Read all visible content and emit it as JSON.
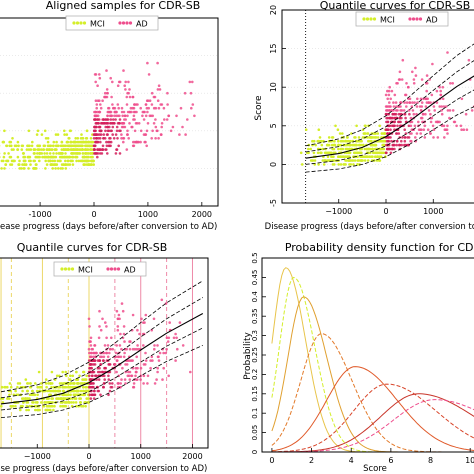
{
  "colors": {
    "mci": "#d4ee2a",
    "ad": "#ee4d8c",
    "ad_dark": "#d41d5a",
    "axis": "#000000",
    "grid": "#e6e6e6",
    "quantile_line": "#000000",
    "vline_mci": "#ecd86a",
    "vline_ad": "#ee8aa8"
  },
  "chart_data": [
    {
      "type": "scatter",
      "title": "Aligned samples for CDR-SB",
      "xlabel": "Disease progress (days before/after conversion to AD)",
      "ylabel": "",
      "xlim": [
        -2300,
        2300
      ],
      "ylim": [
        -5,
        20
      ],
      "xticks": [
        -2000,
        -1000,
        0,
        1000,
        2000
      ],
      "xtick_labels": [
        "-2000",
        "-1000",
        "0",
        "1000",
        "2000"
      ],
      "legend": [
        "MCI",
        "AD"
      ],
      "legend_position": "top-center",
      "grid": true,
      "series": [
        {
          "name": "MCI",
          "color": "mci",
          "x_range": [
            -1800,
            0
          ],
          "y_range": [
            0,
            4
          ]
        },
        {
          "name": "AD",
          "color": "ad",
          "x_range": [
            0,
            2000
          ],
          "y_range": [
            1,
            15
          ]
        }
      ]
    },
    {
      "type": "line",
      "title": "Quantile curves for CDR-SB",
      "xlabel": "Disease progress (days before/after conversion to AD)",
      "ylabel": "Score",
      "xlim": [
        -2200,
        2200
      ],
      "ylim": [
        -5,
        20
      ],
      "xticks": [
        -1000,
        0,
        1000
      ],
      "xtick_labels": [
        "−1000",
        "0",
        "1000"
      ],
      "yticks": [
        -5,
        0,
        5,
        10,
        15,
        20
      ],
      "ytick_labels": [
        "-5",
        "0",
        "5",
        "10",
        "15",
        "20"
      ],
      "legend": [
        "MCI",
        "AD"
      ],
      "legend_position": "top-center",
      "vline_dotted_x": -1700,
      "quantiles": [
        {
          "x": [
            -1700,
            -1000,
            -500,
            0,
            500,
            1000,
            1500,
            2200
          ],
          "y": [
            -1.0,
            -0.6,
            0.0,
            1.0,
            2.6,
            4.5,
            6.4,
            8.5
          ]
        },
        {
          "x": [
            -1700,
            -1000,
            -500,
            0,
            500,
            1000,
            1500,
            2200
          ],
          "y": [
            0.0,
            0.5,
            1.2,
            2.4,
            4.2,
            6.3,
            8.4,
            10.8
          ]
        },
        {
          "x": [
            -1700,
            -1000,
            -500,
            0,
            500,
            1000,
            1500,
            2200
          ],
          "y": [
            0.8,
            1.4,
            2.2,
            3.6,
            5.6,
            7.9,
            10.1,
            12.7
          ]
        },
        {
          "x": [
            -1700,
            -1000,
            -500,
            0,
            500,
            1000,
            1500,
            2200
          ],
          "y": [
            1.6,
            2.3,
            3.3,
            4.9,
            7.1,
            9.6,
            12.0,
            14.8
          ]
        },
        {
          "x": [
            -1700,
            -1000,
            -500,
            0,
            500,
            1000,
            1500,
            2200
          ],
          "y": [
            2.4,
            3.3,
            4.5,
            6.3,
            8.8,
            11.5,
            14.1,
            17.0
          ]
        }
      ]
    },
    {
      "type": "line",
      "title": "Quantile curves for CDR-SB",
      "xlabel": "Disease progress (days before/after conversion to AD)",
      "ylabel": "",
      "xlim": [
        -2300,
        2300
      ],
      "ylim": [
        -5,
        20
      ],
      "xticks": [
        -1000,
        0,
        1000,
        2000
      ],
      "xtick_labels": [
        "−1000",
        "0",
        "1000",
        "2000"
      ],
      "legend": [
        "MCI",
        "AD"
      ],
      "legend_position": "top-center",
      "vlines": [
        -1700,
        -1500,
        -900,
        -400,
        0,
        500,
        1000,
        1500,
        2000
      ],
      "quantiles_same_as_panel": 2
    },
    {
      "type": "line",
      "title": "Probability density function for CDR-SB",
      "xlabel": "Score",
      "ylabel": "Probability",
      "xlim": [
        -0.5,
        11
      ],
      "ylim": [
        0,
        0.5
      ],
      "xticks": [
        0,
        2,
        4,
        6,
        8,
        10
      ],
      "xtick_labels": [
        "0",
        "2",
        "4",
        "6",
        "8",
        "10"
      ],
      "yticks": [
        0,
        0.05,
        0.1,
        0.15,
        0.2,
        0.25,
        0.3,
        0.35,
        0.4,
        0.45,
        0.5
      ],
      "ytick_labels": [
        "0",
        "0.05",
        "0.1",
        "0.15",
        "0.2",
        "0.25",
        "0.3",
        "0.35",
        "0.4",
        "0.45",
        "0.5"
      ],
      "curves": [
        {
          "mode": 0.7,
          "peak": 0.475,
          "sd": 0.85,
          "color": "#e8c44a"
        },
        {
          "mode": 1.1,
          "peak": 0.45,
          "sd": 0.9,
          "color": "#d4ee2a"
        },
        {
          "mode": 1.6,
          "peak": 0.4,
          "sd": 1.0,
          "color": "#e0a030"
        },
        {
          "mode": 2.5,
          "peak": 0.305,
          "sd": 1.3,
          "color": "#e37a2a"
        },
        {
          "mode": 4.2,
          "peak": 0.22,
          "sd": 1.8,
          "color": "#e05a2a"
        },
        {
          "mode": 5.8,
          "peak": 0.175,
          "sd": 2.1,
          "color": "#d8452a"
        },
        {
          "mode": 7.4,
          "peak": 0.15,
          "sd": 2.4,
          "color": "#c8352a"
        },
        {
          "mode": 8.2,
          "peak": 0.135,
          "sd": 2.6,
          "color": "#ee4d8c"
        }
      ]
    }
  ],
  "panels": {
    "a": {
      "title": "Aligned samples for CDR-SB",
      "xlabel": "Disease progress (days before/after conversion to AD)",
      "legend": [
        "MCI",
        "AD"
      ]
    },
    "b": {
      "title": "Quantile curves for CDR-SB",
      "xlabel": "Disease progress (days before/after conversion to AD)",
      "ylabel": "Score",
      "legend": [
        "MCI",
        "AD"
      ]
    },
    "c": {
      "title": "Quantile curves for CDR-SB",
      "xlabel": "Disease progress (days before/after conversion to AD)",
      "legend": [
        "MCI",
        "AD"
      ]
    },
    "d": {
      "title": "Probability density function for CDR-SB",
      "xlabel": "Score",
      "ylabel": "Probability"
    }
  }
}
